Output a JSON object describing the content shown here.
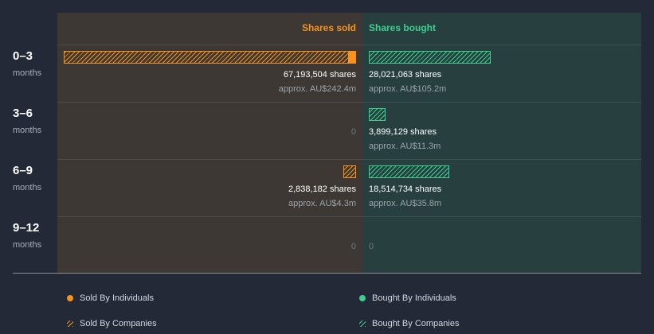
{
  "chart_data": {
    "type": "bar",
    "orientation": "horizontal-diverging",
    "headers": {
      "sold": "Shares sold",
      "bought": "Shares bought"
    },
    "categories": [
      {
        "period": "0–3",
        "unit": "months"
      },
      {
        "period": "3–6",
        "unit": "months"
      },
      {
        "period": "6–9",
        "unit": "months"
      },
      {
        "period": "9–12",
        "unit": "months"
      }
    ],
    "series": [
      {
        "name": "Sold By Individuals",
        "values": [
          1600000,
          0,
          0,
          0
        ]
      },
      {
        "name": "Sold By Companies",
        "values": [
          65593504,
          0,
          2838182,
          0
        ]
      },
      {
        "name": "Bought By Individuals",
        "values": [
          0,
          0,
          0,
          0
        ]
      },
      {
        "name": "Bought By Companies",
        "values": [
          28021063,
          3899129,
          18514734,
          0
        ]
      }
    ],
    "sold_labels": [
      {
        "shares": "67,193,504 shares",
        "approx": "approx. AU$242.4m"
      },
      {
        "zero": "0"
      },
      {
        "shares": "2,838,182 shares",
        "approx": "approx. AU$4.3m"
      },
      {
        "zero": "0"
      }
    ],
    "bought_labels": [
      {
        "shares": "28,021,063 shares",
        "approx": "approx. AU$105.2m"
      },
      {
        "shares": "3,899,129 shares",
        "approx": "approx. AU$11.3m"
      },
      {
        "shares": "18,514,734 shares",
        "approx": "approx. AU$35.8m"
      },
      {
        "zero": "0"
      }
    ],
    "legend": {
      "sold_individuals": "Sold By Individuals",
      "bought_individuals": "Bought By Individuals",
      "sold_companies": "Sold By Companies",
      "bought_companies": "Bought By Companies"
    },
    "colors": {
      "sold": "#f7931a",
      "bought": "#3ccf8e"
    },
    "max_value": 67193504
  }
}
